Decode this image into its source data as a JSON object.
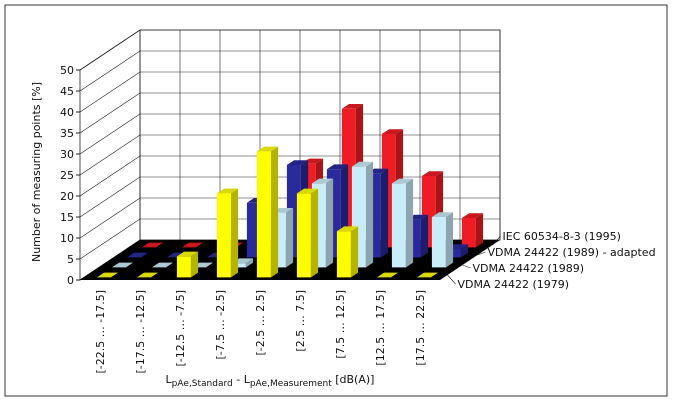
{
  "chart_data": {
    "type": "bar3d",
    "y_label": "Number of measuring points [%]",
    "x_label": [
      "L",
      "pAe,Standard",
      " - L",
      "pAe,Measurement",
      " [dB(A)]"
    ],
    "categories": [
      "[-22.5 … -17.5]",
      "[-17.5 … -12.5]",
      "[-12.5 … -7.5]",
      "[-7.5 … -2.5]",
      "[-2.5 … 2.5]",
      "[2.5 … 7.5]",
      "[7.5 … 12.5]",
      "[12.5 … 17.5]",
      "[17.5 … 22.5]"
    ],
    "series": [
      {
        "name": "VDMA 24422 (1979)",
        "color": "#ffff00",
        "values": [
          0,
          0,
          5,
          20,
          30,
          20,
          11,
          0,
          0
        ]
      },
      {
        "name": "VDMA 24422 (1989)",
        "color": "#c8ecf8",
        "values": [
          0,
          0,
          0,
          1,
          13,
          20,
          24,
          20,
          12
        ]
      },
      {
        "name": "VDMA 24422 (1989) - adapted",
        "color": "#2a2a9c",
        "values": [
          0,
          0,
          0,
          13,
          22,
          21,
          20,
          9,
          2
        ]
      },
      {
        "name": "IEC 60534-8-3 (1995)",
        "color": "#ee1c24",
        "values": [
          0,
          0,
          0,
          0,
          20,
          33,
          27,
          17,
          7
        ]
      }
    ],
    "ylim": [
      0,
      50
    ],
    "yticks": [
      0,
      5,
      10,
      15,
      20,
      25,
      30,
      35,
      40,
      45,
      50
    ],
    "grid": true
  }
}
